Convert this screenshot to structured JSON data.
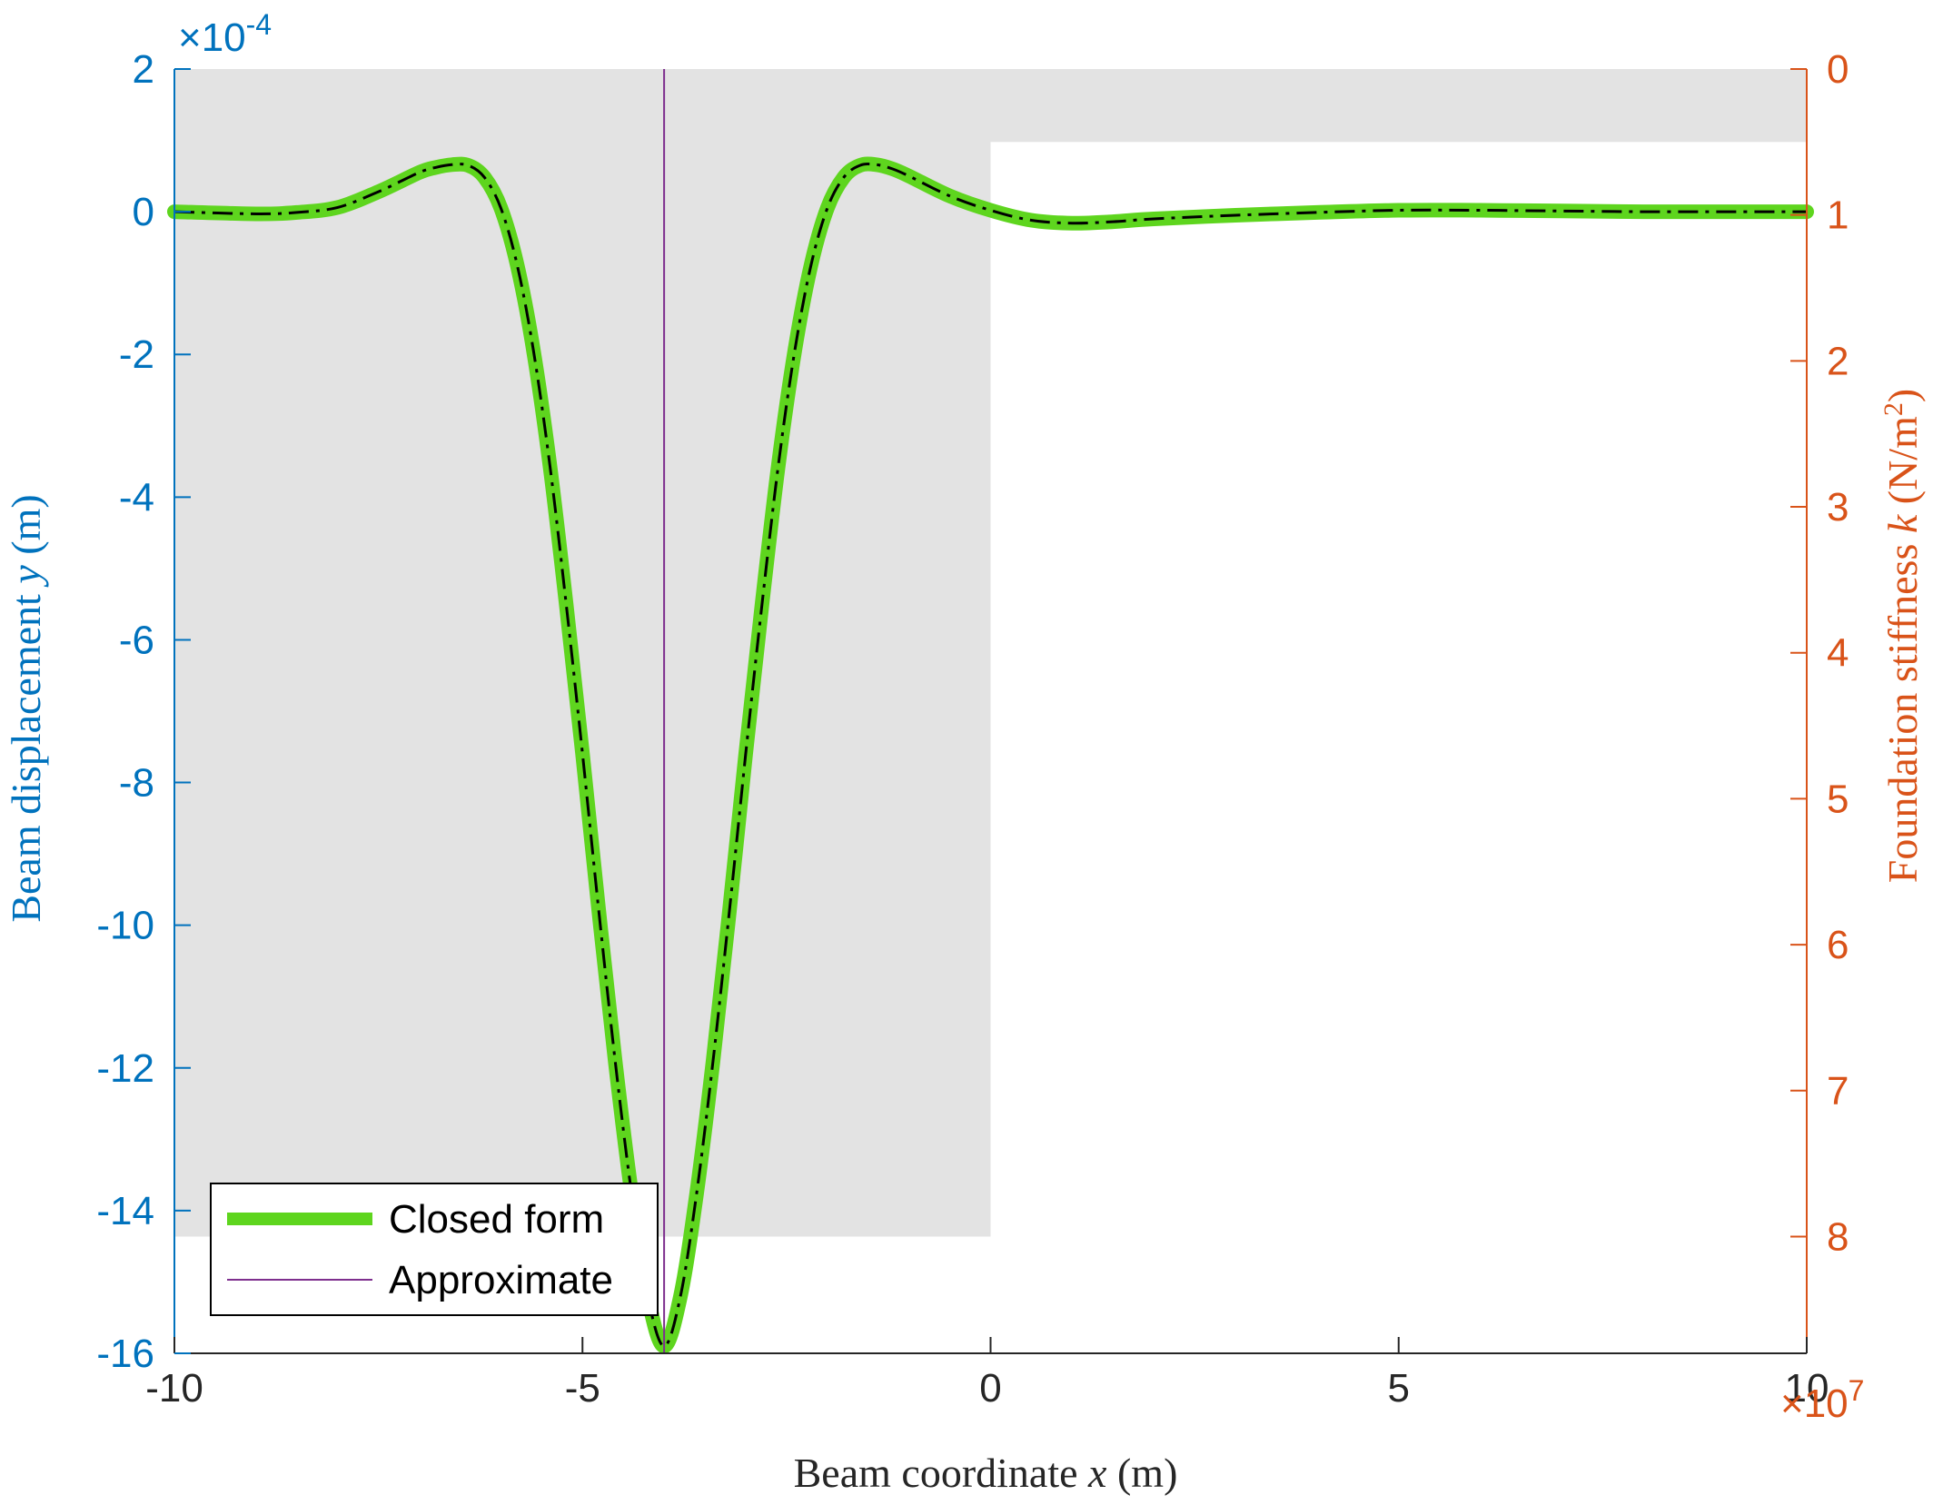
{
  "colors": {
    "left_axis": "#0072BD",
    "right_axis": "#D95319",
    "closed_form": "#5ED51E",
    "approximate": "#7E2F8E",
    "reference": "#000000",
    "stiffness_fill": "#E3E3E3"
  },
  "chart_data": {
    "type": "line",
    "xlabel_text": "Beam coordinate ",
    "xlabel_var": "x",
    "xlabel_unit": " (m)",
    "ylabel_left_text": "Beam displacement ",
    "ylabel_left_var": "y",
    "ylabel_left_unit": " (m)",
    "ylabel_right_text": "Foundation stiffness ",
    "ylabel_right_var": "k",
    "ylabel_right_unit": " (N/m",
    "ylabel_right_unit_sup": "2",
    "ylabel_right_unit_close": ")",
    "xlim": [
      -10,
      10
    ],
    "ylim_left": [
      -16,
      2
    ],
    "ylim_right_reversed": [
      0,
      8.8
    ],
    "left_exponent_label": "×10",
    "left_exponent_power": "-4",
    "right_exponent_label": "×10",
    "right_exponent_power": "7",
    "x_ticks": [
      "-10",
      "-5",
      "0",
      "5",
      "10"
    ],
    "x_tick_values": [
      -10,
      -5,
      0,
      5,
      10
    ],
    "y_left_ticks": [
      "2",
      "0",
      "-2",
      "-4",
      "-6",
      "-8",
      "-10",
      "-12",
      "-14",
      "-16"
    ],
    "y_left_tick_values": [
      2,
      0,
      -2,
      -4,
      -6,
      -8,
      -10,
      -12,
      -14,
      -16
    ],
    "y_right_ticks": [
      "0",
      "1",
      "2",
      "3",
      "4",
      "5",
      "6",
      "7",
      "8"
    ],
    "y_right_tick_values": [
      0,
      1,
      2,
      3,
      4,
      5,
      6,
      7,
      8
    ],
    "stiffness_profile": [
      {
        "x_from": -10,
        "x_to": 0,
        "k": 8.0
      },
      {
        "x_from": 0,
        "x_to": 10,
        "k": 0.5
      }
    ],
    "approximate_load_x": -4,
    "series": [
      {
        "name": "Closed form",
        "x": [
          -10,
          -9,
          -8.5,
          -8,
          -7.5,
          -7,
          -6.8,
          -6.6,
          -6.4,
          -6.2,
          -6,
          -5.8,
          -5.6,
          -5.4,
          -5.2,
          -5,
          -4.8,
          -4.6,
          -4.4,
          -4.2,
          -4,
          -3.8,
          -3.6,
          -3.4,
          -3.2,
          -3,
          -2.8,
          -2.6,
          -2.4,
          -2.2,
          -2,
          -1.8,
          -1.6,
          -1.4,
          -1.2,
          -1,
          -0.5,
          0,
          0.5,
          1,
          1.5,
          2,
          3,
          4,
          5,
          6,
          7,
          8,
          9,
          10
        ],
        "y": [
          0,
          -0.03,
          -0.01,
          0.06,
          0.28,
          0.55,
          0.62,
          0.66,
          0.65,
          0.48,
          0.05,
          -0.75,
          -1.95,
          -3.55,
          -5.5,
          -7.6,
          -9.8,
          -11.9,
          -13.75,
          -15.2,
          -15.9,
          -15.2,
          -13.75,
          -11.9,
          -9.8,
          -7.6,
          -5.5,
          -3.55,
          -1.95,
          -0.75,
          0.05,
          0.48,
          0.65,
          0.66,
          0.6,
          0.5,
          0.22,
          0.02,
          -0.12,
          -0.16,
          -0.14,
          -0.1,
          -0.05,
          -0.01,
          0.02,
          0.02,
          0.01,
          0.0,
          0.0,
          0.0
        ]
      }
    ],
    "legend": {
      "placement": "bottom-left",
      "entries": [
        "Closed form",
        "Approximate"
      ]
    }
  }
}
